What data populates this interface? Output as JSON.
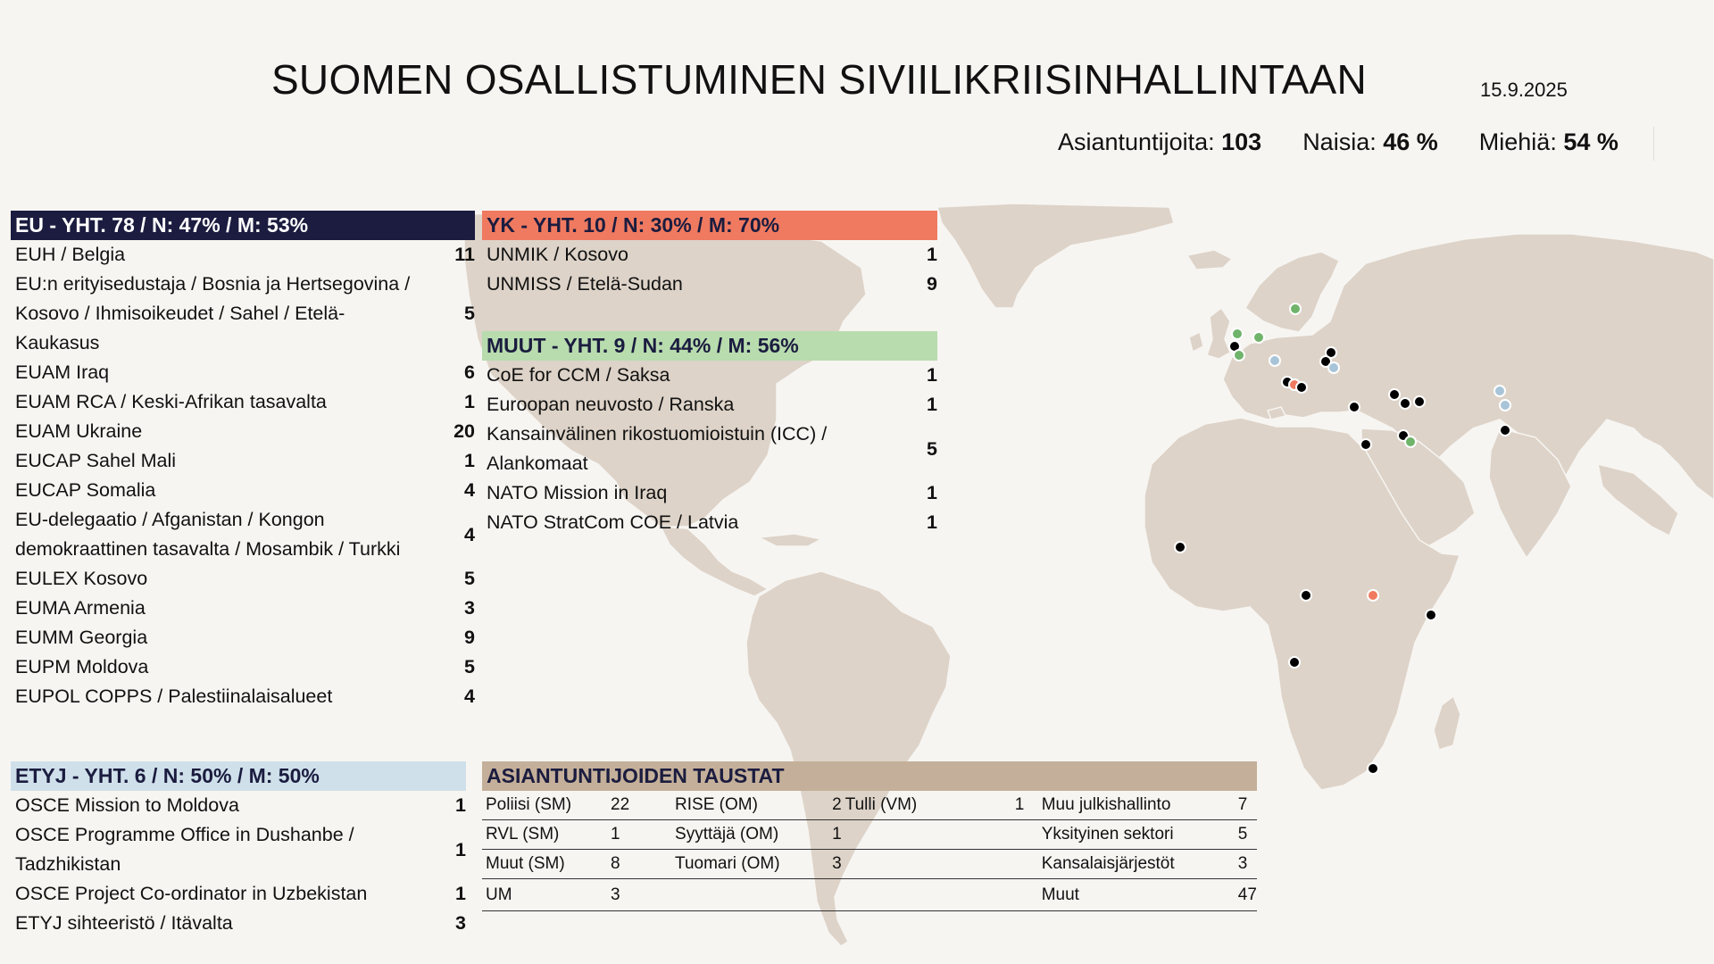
{
  "header": {
    "title": "SUOMEN OSALLISTUMINEN SIVIILIKRIISINHALLINTAAN",
    "date": "15.9.2025",
    "experts_label": "Asiantuntijoita:",
    "experts_value": "103",
    "women_label": "Naisia:",
    "women_value": "46 %",
    "men_label": "Miehiä:",
    "men_value": "54 %"
  },
  "colors": {
    "eu": "#1b1c3f",
    "yk": "#f07a60",
    "muut": "#b8dcae",
    "etyj": "#cfe0ea",
    "taustat": "#c4b09a",
    "map_land": "#ddd3c8"
  },
  "eu": {
    "heading": "EU - YHT. 78 / N: 47% / M: 53%",
    "items": [
      {
        "lines": [
          "EUH / Belgia"
        ],
        "count": "11"
      },
      {
        "lines": [
          "EU:n erityisedustaja / Bosnia ja Hertsegovina /",
          "Kosovo / Ihmisoikeudet / Sahel / Etelä-",
          "Kaukasus"
        ],
        "count": "5"
      },
      {
        "lines": [
          "EUAM Iraq"
        ],
        "count": "6"
      },
      {
        "lines": [
          "EUAM RCA / Keski-Afrikan tasavalta"
        ],
        "count": "1"
      },
      {
        "lines": [
          "EUAM Ukraine"
        ],
        "count": "20"
      },
      {
        "lines": [
          "EUCAP Sahel Mali"
        ],
        "count": "1"
      },
      {
        "lines": [
          "EUCAP Somalia"
        ],
        "count": "4"
      },
      {
        "lines": [
          "EU-delegaatio / Afganistan / Kongon",
          "demokraattinen tasavalta / Mosambik / Turkki"
        ],
        "count": "4"
      },
      {
        "lines": [
          "EULEX Kosovo"
        ],
        "count": "5"
      },
      {
        "lines": [
          "EUMA Armenia"
        ],
        "count": "3"
      },
      {
        "lines": [
          "EUMM Georgia"
        ],
        "count": "9"
      },
      {
        "lines": [
          "EUPM Moldova"
        ],
        "count": "5"
      },
      {
        "lines": [
          "EUPOL COPPS / Palestiinalaisalueet"
        ],
        "count": "4"
      }
    ]
  },
  "yk": {
    "heading": "YK - YHT. 10 / N: 30% / M: 70%",
    "items": [
      {
        "lines": [
          "UNMIK / Kosovo"
        ],
        "count": "1"
      },
      {
        "lines": [
          "UNMISS / Etelä-Sudan"
        ],
        "count": "9"
      }
    ]
  },
  "muut": {
    "heading": "MUUT - YHT. 9 / N: 44% / M: 56%",
    "items": [
      {
        "lines": [
          "CoE for CCM / Saksa"
        ],
        "count": "1"
      },
      {
        "lines": [
          "Euroopan neuvosto / Ranska"
        ],
        "count": "1"
      },
      {
        "lines": [
          "Kansainvälinen rikostuomioistuin (ICC) /",
          "Alankomaat"
        ],
        "count": "5"
      },
      {
        "lines": [
          "NATO Mission in Iraq"
        ],
        "count": "1"
      },
      {
        "lines": [
          "NATO StratCom COE / Latvia"
        ],
        "count": "1"
      }
    ]
  },
  "etyj": {
    "heading": "ETYJ - YHT. 6 / N: 50% / M: 50%",
    "items": [
      {
        "lines": [
          "OSCE Mission to Moldova"
        ],
        "count": "1"
      },
      {
        "lines": [
          "OSCE Programme Office in Dushanbe /",
          "Tadzhikistan"
        ],
        "count": "1"
      },
      {
        "lines": [
          "OSCE Project Co-ordinator in Uzbekistan"
        ],
        "count": "1"
      },
      {
        "lines": [
          "ETYJ sihteeristö / Itävalta"
        ],
        "count": "3"
      }
    ]
  },
  "taustat": {
    "heading": "ASIANTUNTIJOIDEN TAUSTAT",
    "rows": [
      [
        "Poliisi (SM)",
        "22",
        "RISE (OM)",
        "2",
        "Tulli (VM)",
        "1",
        "Muu julkishallinto",
        "7"
      ],
      [
        "RVL (SM)",
        "1",
        "Syyttäjä (OM)",
        "1",
        "",
        "",
        "Yksityinen sektori",
        "5"
      ],
      [
        "Muut (SM)",
        "8",
        "Tuomari (OM)",
        "3",
        "",
        "",
        "Kansalaisjärjestöt",
        "3"
      ],
      [
        "UM",
        "3",
        "",
        "",
        "",
        "",
        "Muut",
        "47"
      ]
    ]
  }
}
